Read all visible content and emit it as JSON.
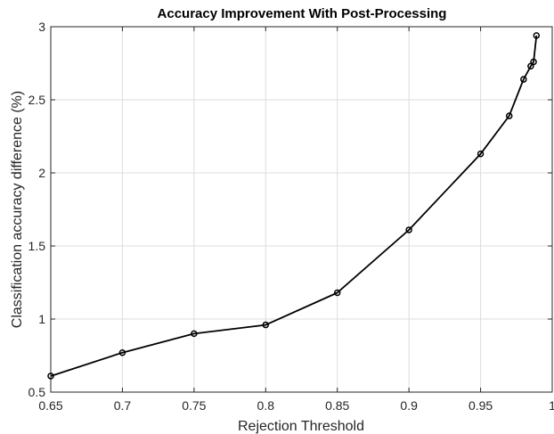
{
  "chart_data": {
    "type": "line",
    "title": "Accuracy Improvement With Post-Processing",
    "xlabel": "Rejection Threshold",
    "ylabel": "Classification accuracy difference (%)",
    "xlim": [
      0.65,
      1
    ],
    "ylim": [
      0.5,
      3
    ],
    "xticks": [
      "0.65",
      "0.7",
      "0.75",
      "0.8",
      "0.85",
      "0.9",
      "0.95",
      "1"
    ],
    "yticks": [
      "0.5",
      "1",
      "1.5",
      "2",
      "2.5",
      "3"
    ],
    "grid": true,
    "legend": "none",
    "line_color": "#000000",
    "marker": "circle",
    "series": [
      {
        "x": [
          0.65,
          0.7,
          0.75,
          0.8,
          0.85,
          0.9,
          0.95,
          0.97,
          0.98,
          0.985,
          0.987,
          0.989
        ],
        "y": [
          0.61,
          0.77,
          0.9,
          0.96,
          1.18,
          1.61,
          2.13,
          2.39,
          2.64,
          2.73,
          2.76,
          2.94
        ]
      }
    ]
  }
}
